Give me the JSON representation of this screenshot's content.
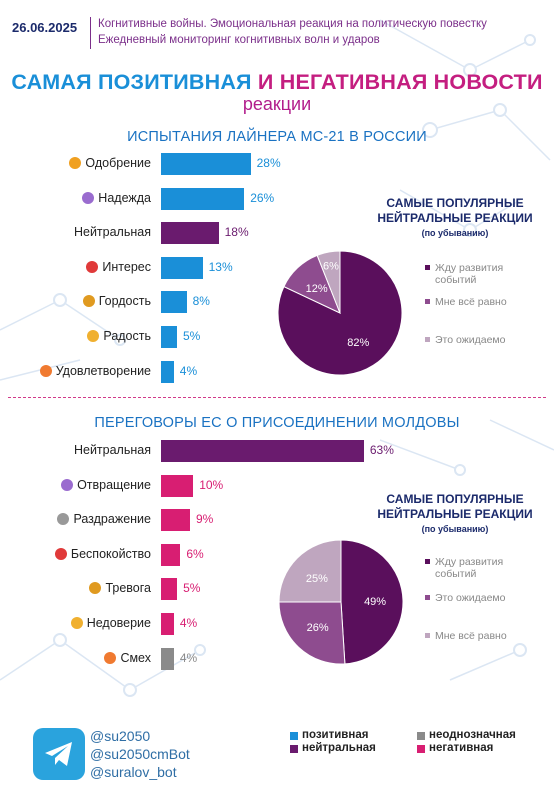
{
  "header": {
    "date": "26.06.2025",
    "line1": "Когнитивные войны. Эмоциональная реакция на политическую повестку",
    "line2": "Ежедневный мониторинг когнитивных волн и ударов"
  },
  "title": {
    "word1": "САМАЯ",
    "word2": "ПОЗИТИВНАЯ",
    "word3": "И НЕГАТИВНАЯ НОВОСТИ",
    "subtitle": "реакции"
  },
  "colors": {
    "positive": "#1a8fd8",
    "neutral": "#6a1b6e",
    "negative": "#d81e72",
    "ambiguous": "#8a8a8a",
    "pie_dark": "#5a0f5c",
    "pie_mid": "#8e4c8f",
    "pie_light": "#bfa6bf"
  },
  "chart_data": [
    {
      "type": "bar",
      "title": "ИСПЫТАНИЯ ЛАЙНЕРА МС-21 В РОССИИ",
      "categories": [
        "Одобрение",
        "Надежда",
        "Нейтральная",
        "Интерес",
        "Гордость",
        "Радость",
        "Удовлетворение"
      ],
      "values": [
        28,
        26,
        18,
        13,
        8,
        5,
        4
      ],
      "value_labels": [
        "28%",
        "26%",
        "18%",
        "13%",
        "8%",
        "5%",
        "4%"
      ],
      "kinds": [
        "positive",
        "positive",
        "neutral",
        "positive",
        "positive",
        "positive",
        "positive"
      ],
      "icons": [
        "approval-icon",
        "hope-icon",
        "",
        "interest-icon",
        "pride-icon",
        "joy-icon",
        "satisfaction-icon"
      ],
      "unit": "%"
    },
    {
      "type": "pie",
      "title": "САМЫЕ ПОПУЛЯРНЫЕ НЕЙТРАЛЬНЫЕ РЕАКЦИИ",
      "subtitle": "(по убыванию)",
      "categories": [
        "Жду развития событий",
        "Мне всё равно",
        "Это ожидаемо"
      ],
      "values": [
        82,
        12,
        6
      ],
      "value_labels": [
        "82%",
        "12%",
        "6%"
      ]
    },
    {
      "type": "bar",
      "title": "ПЕРЕГОВОРЫ ЕС О ПРИСОЕДИНЕНИИ МОЛДОВЫ",
      "categories": [
        "Нейтральная",
        "Отвращение",
        "Раздражение",
        "Беспокойство",
        "Тревога",
        "Недоверие",
        "Смех"
      ],
      "values": [
        63,
        10,
        9,
        6,
        5,
        4,
        4
      ],
      "value_labels": [
        "63%",
        "10%",
        "9%",
        "6%",
        "5%",
        "4%",
        "4%"
      ],
      "kinds": [
        "neutral",
        "negative",
        "negative",
        "negative",
        "negative",
        "negative",
        "ambiguous"
      ],
      "icons": [
        "",
        "disgust-icon",
        "irritation-icon",
        "worry-icon",
        "anxiety-icon",
        "distrust-icon",
        "laughter-icon"
      ],
      "unit": "%"
    },
    {
      "type": "pie",
      "title": "САМЫЕ ПОПУЛЯРНЫЕ НЕЙТРАЛЬНЫЕ РЕАКЦИИ",
      "subtitle": "(по убыванию)",
      "categories": [
        "Жду развития событий",
        "Это ожидаемо",
        "Мне всё равно"
      ],
      "values": [
        49,
        26,
        25
      ],
      "value_labels": [
        "49%",
        "26%",
        "25%"
      ]
    }
  ],
  "pie1_title_lines": [
    "САМЫЕ ПОПУЛЯРНЫЕ",
    "НЕЙТРАЛЬНЫЕ РЕАКЦИИ"
  ],
  "pie1_legend": [
    "Жду развития событий",
    "Мне всё равно",
    "Это ожидаемо"
  ],
  "pie2_title_lines": [
    "САМЫЕ ПОПУЛЯРНЫЕ",
    "НЕЙТРАЛЬНЫЕ РЕАКЦИИ"
  ],
  "pie2_legend": [
    "Жду развития событий",
    "Это ожидаемо",
    "Мне всё равно"
  ],
  "footer": {
    "handles": [
      "@su2050",
      "@su2050cmBot",
      "@suralov_bot"
    ],
    "legend": {
      "positive": "позитивная",
      "ambiguous": "неоднозначная",
      "neutral": "нейтральная",
      "negative": "негативная"
    }
  }
}
